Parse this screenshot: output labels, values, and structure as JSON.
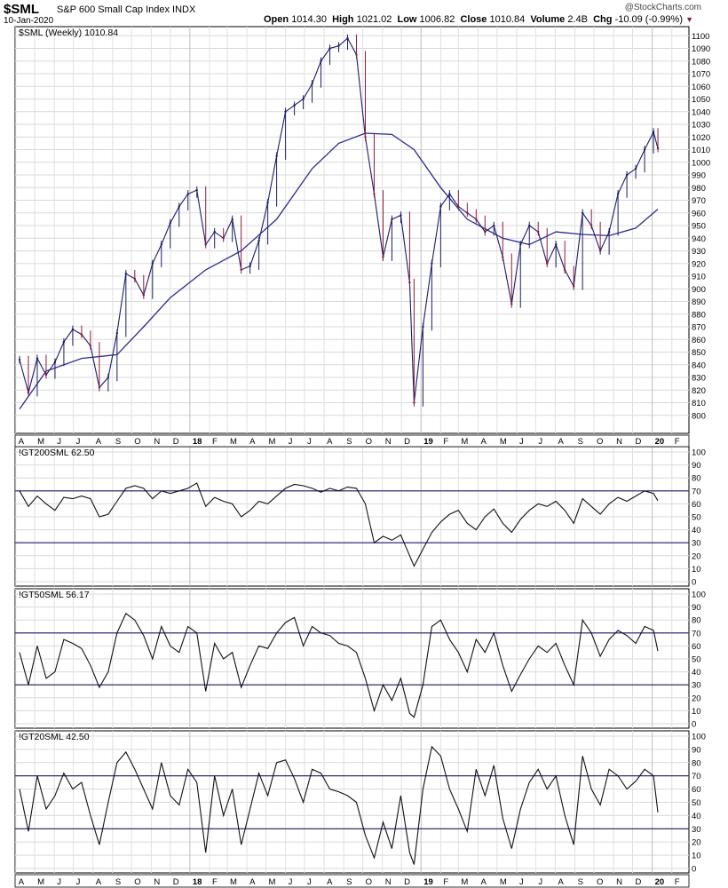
{
  "header": {
    "symbol": "$SML",
    "name": "S&P 600 Small Cap Index",
    "exchange": "INDX",
    "date": "10-Jan-2020",
    "logo": "@StockCharts.com",
    "open_label": "Open",
    "open": "1014.30",
    "high_label": "High",
    "high": "1021.02",
    "low_label": "Low",
    "low": "1006.82",
    "close_label": "Close",
    "close": "1010.84",
    "volume_label": "Volume",
    "volume": "2.4B",
    "chg_label": "Chg",
    "chg": "-10.09 (-0.99%)",
    "chg_arrow": "▼",
    "down_color": "#8b1a3a"
  },
  "x_axis": {
    "labels": [
      "A",
      "M",
      "J",
      "J",
      "A",
      "S",
      "O",
      "N",
      "D",
      "18",
      "F",
      "M",
      "A",
      "M",
      "J",
      "J",
      "A",
      "S",
      "O",
      "N",
      "D",
      "19",
      "F",
      "M",
      "A",
      "M",
      "J",
      "J",
      "A",
      "S",
      "O",
      "N",
      "D",
      "20",
      "F"
    ],
    "bold": [
      "18",
      "19",
      "20"
    ]
  },
  "chart_data": [
    {
      "type": "line",
      "panel": "price",
      "label": "$SML (Weekly) 1010.84",
      "x": [
        "2017-04-07",
        "2017-04-21",
        "2017-05-05",
        "2017-05-19",
        "2017-06-02",
        "2017-06-16",
        "2017-06-30",
        "2017-07-14",
        "2017-07-28",
        "2017-08-11",
        "2017-08-25",
        "2017-09-08",
        "2017-09-22",
        "2017-10-06",
        "2017-10-20",
        "2017-11-03",
        "2017-11-17",
        "2017-12-01",
        "2017-12-15",
        "2017-12-29",
        "2018-01-12",
        "2018-01-26",
        "2018-02-09",
        "2018-02-23",
        "2018-03-09",
        "2018-03-23",
        "2018-04-06",
        "2018-04-20",
        "2018-05-04",
        "2018-05-18",
        "2018-06-01",
        "2018-06-15",
        "2018-06-29",
        "2018-07-13",
        "2018-07-27",
        "2018-08-10",
        "2018-08-24",
        "2018-09-07",
        "2018-09-21",
        "2018-10-05",
        "2018-10-19",
        "2018-11-02",
        "2018-11-16",
        "2018-11-30",
        "2018-12-14",
        "2018-12-21",
        "2019-01-04",
        "2019-01-18",
        "2019-02-01",
        "2019-02-15",
        "2019-03-01",
        "2019-03-15",
        "2019-03-29",
        "2019-04-12",
        "2019-04-26",
        "2019-05-10",
        "2019-05-24",
        "2019-06-07",
        "2019-06-21",
        "2019-07-05",
        "2019-07-19",
        "2019-08-02",
        "2019-08-16",
        "2019-08-30",
        "2019-09-13",
        "2019-09-27",
        "2019-10-11",
        "2019-10-25",
        "2019-11-08",
        "2019-11-22",
        "2019-12-06",
        "2019-12-20",
        "2020-01-03",
        "2020-01-10"
      ],
      "close": [
        844,
        818,
        845,
        832,
        842,
        858,
        868,
        864,
        855,
        822,
        830,
        865,
        912,
        908,
        895,
        920,
        935,
        952,
        965,
        975,
        978,
        935,
        945,
        940,
        955,
        915,
        918,
        938,
        968,
        1005,
        1040,
        1045,
        1050,
        1062,
        1080,
        1090,
        1092,
        1098,
        1085,
        1020,
        975,
        925,
        955,
        958,
        905,
        810,
        870,
        920,
        965,
        975,
        965,
        960,
        955,
        945,
        950,
        925,
        888,
        935,
        950,
        945,
        920,
        935,
        915,
        902,
        960,
        950,
        930,
        945,
        975,
        990,
        995,
        1010,
        1024,
        1011
      ],
      "ma": [
        {
          "x": "2017-04-07",
          "y": 805
        },
        {
          "x": "2017-05-19",
          "y": 835
        },
        {
          "x": "2017-07-14",
          "y": 845
        },
        {
          "x": "2017-09-08",
          "y": 848
        },
        {
          "x": "2017-10-20",
          "y": 870
        },
        {
          "x": "2017-12-01",
          "y": 893
        },
        {
          "x": "2018-01-26",
          "y": 915
        },
        {
          "x": "2018-03-23",
          "y": 930
        },
        {
          "x": "2018-05-18",
          "y": 955
        },
        {
          "x": "2018-07-13",
          "y": 995
        },
        {
          "x": "2018-08-24",
          "y": 1015
        },
        {
          "x": "2018-10-05",
          "y": 1023
        },
        {
          "x": "2018-11-16",
          "y": 1022
        },
        {
          "x": "2018-12-21",
          "y": 1010
        },
        {
          "x": "2019-02-01",
          "y": 980
        },
        {
          "x": "2019-03-15",
          "y": 955
        },
        {
          "x": "2019-05-10",
          "y": 940
        },
        {
          "x": "2019-06-21",
          "y": 935
        },
        {
          "x": "2019-08-02",
          "y": 945
        },
        {
          "x": "2019-09-13",
          "y": 943
        },
        {
          "x": "2019-10-25",
          "y": 942
        },
        {
          "x": "2019-12-06",
          "y": 948
        },
        {
          "x": "2020-01-10",
          "y": 963
        }
      ],
      "ylim": [
        790,
        1103
      ],
      "yticks": [
        800,
        810,
        820,
        830,
        840,
        850,
        860,
        870,
        880,
        890,
        900,
        910,
        920,
        930,
        940,
        950,
        960,
        970,
        980,
        990,
        1000,
        1010,
        1020,
        1030,
        1040,
        1050,
        1060,
        1070,
        1080,
        1090,
        1100
      ],
      "up_color": "#1c1c6a",
      "down_color": "#8b1a3a",
      "ma_color": "#2b2b8f"
    },
    {
      "type": "line",
      "panel": "indicator",
      "label": "!GT200SML 62.50",
      "x": [
        "2017-04-07",
        "2017-04-21",
        "2017-05-05",
        "2017-05-19",
        "2017-06-02",
        "2017-06-16",
        "2017-06-30",
        "2017-07-14",
        "2017-07-28",
        "2017-08-11",
        "2017-08-25",
        "2017-09-08",
        "2017-09-22",
        "2017-10-06",
        "2017-10-20",
        "2017-11-03",
        "2017-11-17",
        "2017-12-01",
        "2017-12-15",
        "2017-12-29",
        "2018-01-12",
        "2018-01-26",
        "2018-02-09",
        "2018-02-23",
        "2018-03-09",
        "2018-03-23",
        "2018-04-06",
        "2018-04-20",
        "2018-05-04",
        "2018-05-18",
        "2018-06-01",
        "2018-06-15",
        "2018-06-29",
        "2018-07-13",
        "2018-07-27",
        "2018-08-10",
        "2018-08-24",
        "2018-09-07",
        "2018-09-21",
        "2018-10-05",
        "2018-10-19",
        "2018-11-02",
        "2018-11-16",
        "2018-11-30",
        "2018-12-14",
        "2018-12-21",
        "2019-01-04",
        "2019-01-18",
        "2019-02-01",
        "2019-02-15",
        "2019-03-01",
        "2019-03-15",
        "2019-03-29",
        "2019-04-12",
        "2019-04-26",
        "2019-05-10",
        "2019-05-24",
        "2019-06-07",
        "2019-06-21",
        "2019-07-05",
        "2019-07-19",
        "2019-08-02",
        "2019-08-16",
        "2019-08-30",
        "2019-09-13",
        "2019-09-27",
        "2019-10-11",
        "2019-10-25",
        "2019-11-08",
        "2019-11-22",
        "2019-12-06",
        "2019-12-20",
        "2020-01-03",
        "2020-01-10"
      ],
      "y": [
        70,
        58,
        66,
        60,
        55,
        65,
        64,
        66,
        64,
        50,
        52,
        62,
        72,
        74,
        72,
        64,
        70,
        68,
        70,
        72,
        76,
        58,
        65,
        62,
        60,
        50,
        55,
        62,
        60,
        66,
        72,
        75,
        74,
        72,
        69,
        72,
        70,
        73,
        72,
        60,
        30,
        35,
        32,
        36,
        20,
        12,
        25,
        38,
        46,
        52,
        55,
        45,
        40,
        50,
        56,
        45,
        38,
        48,
        55,
        60,
        58,
        62,
        55,
        45,
        64,
        58,
        52,
        60,
        65,
        62,
        66,
        70,
        68,
        62.5
      ],
      "ylim": [
        0,
        100
      ],
      "yticks": [
        0,
        10,
        20,
        30,
        40,
        50,
        60,
        70,
        80,
        90,
        100
      ],
      "levels": [
        30,
        70
      ]
    },
    {
      "type": "line",
      "panel": "indicator",
      "label": "!GT50SML 56.17",
      "x": [
        "2017-04-07",
        "2017-04-21",
        "2017-05-05",
        "2017-05-19",
        "2017-06-02",
        "2017-06-16",
        "2017-06-30",
        "2017-07-14",
        "2017-07-28",
        "2017-08-11",
        "2017-08-25",
        "2017-09-08",
        "2017-09-22",
        "2017-10-06",
        "2017-10-20",
        "2017-11-03",
        "2017-11-17",
        "2017-12-01",
        "2017-12-15",
        "2017-12-29",
        "2018-01-12",
        "2018-01-26",
        "2018-02-09",
        "2018-02-23",
        "2018-03-09",
        "2018-03-23",
        "2018-04-06",
        "2018-04-20",
        "2018-05-04",
        "2018-05-18",
        "2018-06-01",
        "2018-06-15",
        "2018-06-29",
        "2018-07-13",
        "2018-07-27",
        "2018-08-10",
        "2018-08-24",
        "2018-09-07",
        "2018-09-21",
        "2018-10-05",
        "2018-10-19",
        "2018-11-02",
        "2018-11-16",
        "2018-11-30",
        "2018-12-14",
        "2018-12-21",
        "2019-01-04",
        "2019-01-18",
        "2019-02-01",
        "2019-02-15",
        "2019-03-01",
        "2019-03-15",
        "2019-03-29",
        "2019-04-12",
        "2019-04-26",
        "2019-05-10",
        "2019-05-24",
        "2019-06-07",
        "2019-06-21",
        "2019-07-05",
        "2019-07-19",
        "2019-08-02",
        "2019-08-16",
        "2019-08-30",
        "2019-09-13",
        "2019-09-27",
        "2019-10-11",
        "2019-10-25",
        "2019-11-08",
        "2019-11-22",
        "2019-12-06",
        "2019-12-20",
        "2020-01-03",
        "2020-01-10"
      ],
      "y": [
        55,
        30,
        60,
        35,
        40,
        65,
        62,
        58,
        45,
        28,
        40,
        70,
        85,
        80,
        68,
        50,
        75,
        60,
        55,
        75,
        70,
        25,
        62,
        50,
        55,
        28,
        45,
        60,
        58,
        70,
        78,
        82,
        60,
        75,
        70,
        68,
        62,
        60,
        55,
        35,
        10,
        30,
        18,
        35,
        8,
        5,
        30,
        75,
        80,
        65,
        55,
        40,
        65,
        55,
        70,
        45,
        25,
        38,
        50,
        60,
        55,
        62,
        45,
        30,
        80,
        70,
        52,
        65,
        72,
        68,
        62,
        75,
        72,
        56.17
      ],
      "ylim": [
        0,
        100
      ],
      "yticks": [
        0,
        10,
        20,
        30,
        40,
        50,
        60,
        70,
        80,
        90,
        100
      ],
      "levels": [
        30,
        70
      ]
    },
    {
      "type": "line",
      "panel": "indicator",
      "label": "!GT20SML 42.50",
      "x": [
        "2017-04-07",
        "2017-04-21",
        "2017-05-05",
        "2017-05-19",
        "2017-06-02",
        "2017-06-16",
        "2017-06-30",
        "2017-07-14",
        "2017-07-28",
        "2017-08-11",
        "2017-08-25",
        "2017-09-08",
        "2017-09-22",
        "2017-10-06",
        "2017-10-20",
        "2017-11-03",
        "2017-11-17",
        "2017-12-01",
        "2017-12-15",
        "2017-12-29",
        "2018-01-12",
        "2018-01-26",
        "2018-02-09",
        "2018-02-23",
        "2018-03-09",
        "2018-03-23",
        "2018-04-06",
        "2018-04-20",
        "2018-05-04",
        "2018-05-18",
        "2018-06-01",
        "2018-06-15",
        "2018-06-29",
        "2018-07-13",
        "2018-07-27",
        "2018-08-10",
        "2018-08-24",
        "2018-09-07",
        "2018-09-21",
        "2018-10-05",
        "2018-10-19",
        "2018-11-02",
        "2018-11-16",
        "2018-11-30",
        "2018-12-14",
        "2018-12-21",
        "2019-01-04",
        "2019-01-18",
        "2019-02-01",
        "2019-02-15",
        "2019-03-01",
        "2019-03-15",
        "2019-03-29",
        "2019-04-12",
        "2019-04-26",
        "2019-05-10",
        "2019-05-24",
        "2019-06-07",
        "2019-06-21",
        "2019-07-05",
        "2019-07-19",
        "2019-08-02",
        "2019-08-16",
        "2019-08-30",
        "2019-09-13",
        "2019-09-27",
        "2019-10-11",
        "2019-10-25",
        "2019-11-08",
        "2019-11-22",
        "2019-12-06",
        "2019-12-20",
        "2020-01-03",
        "2020-01-10"
      ],
      "y": [
        60,
        28,
        70,
        45,
        55,
        72,
        60,
        65,
        40,
        18,
        50,
        80,
        88,
        75,
        60,
        45,
        80,
        55,
        48,
        75,
        65,
        12,
        70,
        40,
        60,
        18,
        45,
        72,
        55,
        80,
        82,
        68,
        50,
        75,
        72,
        60,
        58,
        55,
        50,
        25,
        8,
        35,
        15,
        55,
        12,
        3,
        60,
        92,
        85,
        60,
        45,
        28,
        75,
        55,
        78,
        38,
        15,
        45,
        65,
        75,
        60,
        70,
        40,
        18,
        85,
        60,
        48,
        75,
        70,
        60,
        66,
        75,
        70,
        42.5
      ],
      "ylim": [
        0,
        100
      ],
      "yticks": [
        0,
        10,
        20,
        30,
        40,
        50,
        60,
        70,
        80,
        90,
        100
      ],
      "levels": [
        30,
        70
      ]
    }
  ]
}
